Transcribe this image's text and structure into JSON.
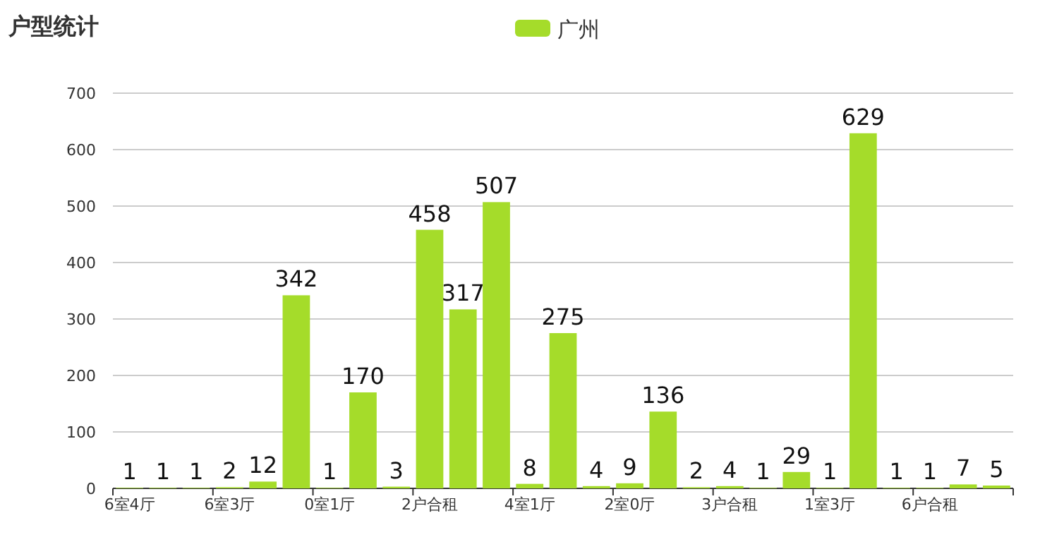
{
  "chart_data": {
    "type": "bar",
    "title": "户型统计",
    "legend": "top",
    "categories": [
      "6室4厅",
      null,
      null,
      "6室3厅",
      null,
      null,
      "0室1厅",
      null,
      null,
      "2户合租",
      null,
      null,
      "4室1厅",
      null,
      null,
      "2室0厅",
      null,
      null,
      "3户合租",
      null,
      null,
      "1室3厅",
      null,
      null,
      "6户合租",
      null,
      null
    ],
    "series": [
      {
        "name": "广州",
        "color": "#a5dc2a",
        "values": [
          1,
          1,
          1,
          2,
          12,
          342,
          1,
          170,
          3,
          458,
          317,
          507,
          8,
          275,
          4,
          9,
          136,
          2,
          4,
          1,
          29,
          1,
          629,
          1,
          1,
          7,
          5
        ]
      }
    ],
    "data_labels": true,
    "ylim": [
      0,
      700
    ],
    "yticks": [
      0,
      100,
      200,
      300,
      400,
      500,
      600,
      700
    ],
    "grid": "y"
  }
}
